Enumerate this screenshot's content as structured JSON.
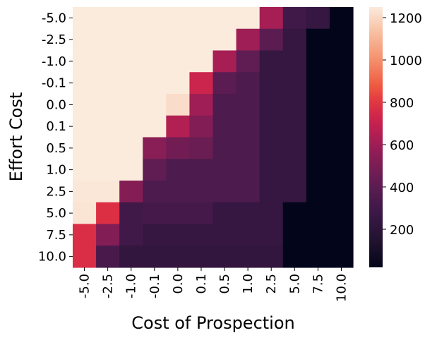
{
  "chart_data": {
    "type": "heatmap",
    "xlabel": "Cost of Prospection",
    "ylabel": "Effort Cost",
    "x_categories": [
      "-5.0",
      "-2.5",
      "-1.0",
      "-0.1",
      "0.0",
      "0.1",
      "0.5",
      "1.0",
      "2.5",
      "5.0",
      "7.5",
      "10.0"
    ],
    "y_categories": [
      "-5.0",
      "-2.5",
      "-1.0",
      "-0.1",
      "0.0",
      "0.1",
      "0.5",
      "1.0",
      "2.5",
      "5.0",
      "7.5",
      "10.0"
    ],
    "values": [
      [
        1250,
        1250,
        1250,
        1250,
        1250,
        1250,
        1250,
        1250,
        620,
        300,
        250,
        20
      ],
      [
        1250,
        1250,
        1250,
        1250,
        1250,
        1250,
        1250,
        600,
        400,
        250,
        20,
        20
      ],
      [
        1250,
        1250,
        1250,
        1250,
        1250,
        1250,
        620,
        420,
        250,
        250,
        20,
        20
      ],
      [
        1250,
        1250,
        1250,
        1250,
        1250,
        720,
        400,
        350,
        250,
        250,
        20,
        20
      ],
      [
        1250,
        1250,
        1250,
        1250,
        1210,
        600,
        350,
        350,
        250,
        250,
        20,
        20
      ],
      [
        1250,
        1250,
        1250,
        1250,
        650,
        520,
        350,
        350,
        250,
        250,
        20,
        20
      ],
      [
        1250,
        1250,
        1250,
        540,
        470,
        450,
        350,
        350,
        250,
        250,
        20,
        20
      ],
      [
        1250,
        1250,
        1250,
        420,
        350,
        350,
        350,
        350,
        250,
        250,
        20,
        20
      ],
      [
        1240,
        1240,
        530,
        350,
        350,
        350,
        350,
        350,
        250,
        250,
        20,
        20
      ],
      [
        1230,
        780,
        300,
        320,
        320,
        320,
        250,
        250,
        250,
        20,
        20,
        20
      ],
      [
        770,
        520,
        300,
        250,
        250,
        250,
        250,
        250,
        250,
        20,
        20,
        20
      ],
      [
        770,
        330,
        230,
        230,
        230,
        230,
        230,
        230,
        230,
        20,
        20,
        20
      ]
    ],
    "vmin": 20,
    "vmax": 1250,
    "colormap": "rocket",
    "colorbar": {
      "ticks": [
        200,
        400,
        600,
        800,
        1000,
        1200
      ]
    }
  }
}
